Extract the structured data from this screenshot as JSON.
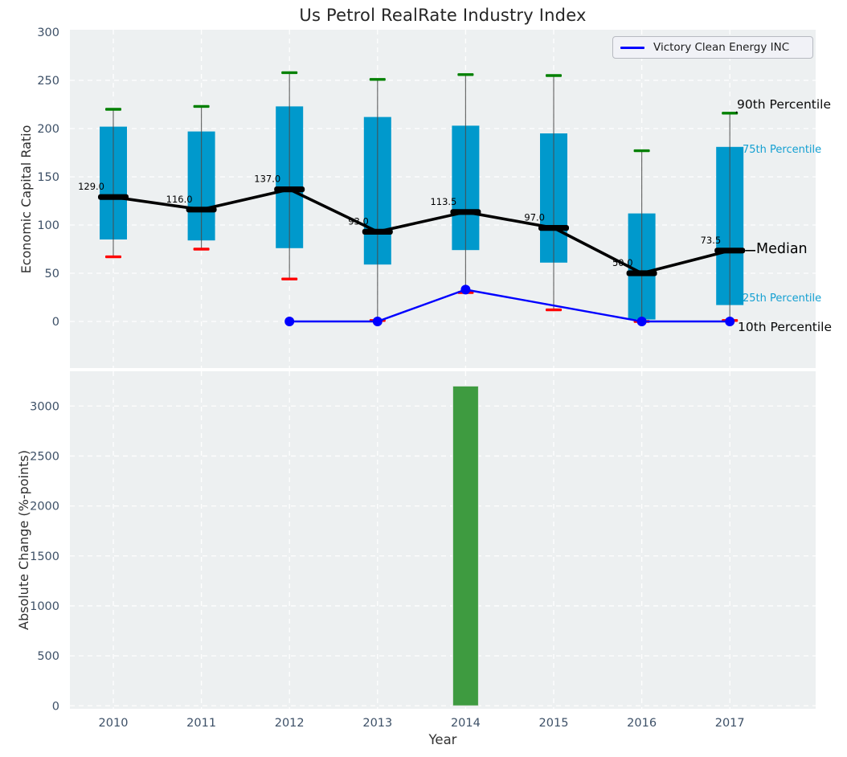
{
  "figure": {
    "title": "Us Petrol RealRate Industry Index"
  },
  "legend": {
    "label": "Victory Clean Energy INC"
  },
  "annotations": {
    "p90": "90th Percentile",
    "p75": "75th Percentile",
    "median": "Median",
    "p25": "25th Percentile",
    "p10": "10th Percentile"
  },
  "colors": {
    "box": "#0099cc",
    "cap_high": "#008000",
    "cap_low": "#ff0000",
    "median": "#000000",
    "company_line": "#0000ff",
    "bar": "#3e9b40",
    "axes_bg": "#edf0f1",
    "grid": "#ffffff",
    "tick_label": "#3d5067",
    "annotation_cyan": "#14a0d2",
    "whisker": "#4a4a4a"
  },
  "chart_data": [
    {
      "type": "box",
      "title": "Us Petrol RealRate Industry Index",
      "ylabel": "Economic Capital Ratio",
      "categories": [
        "2010",
        "2011",
        "2012",
        "2013",
        "2014",
        "2015",
        "2016",
        "2017"
      ],
      "yticks": [
        0,
        50,
        100,
        150,
        200,
        250,
        300
      ],
      "ylim": [
        -48,
        300
      ],
      "grid": true,
      "legend_position": "upper right",
      "series": [
        {
          "name": "90th Percentile",
          "values": [
            220,
            223,
            258,
            251,
            256,
            255,
            177,
            216
          ]
        },
        {
          "name": "75th Percentile",
          "values": [
            202,
            197,
            223,
            212,
            203,
            195,
            112,
            181
          ]
        },
        {
          "name": "Median",
          "values": [
            129.0,
            116.0,
            137.0,
            93.0,
            113.5,
            97.0,
            50.0,
            73.5
          ]
        },
        {
          "name": "25th Percentile",
          "values": [
            85,
            84,
            76,
            59,
            74,
            61,
            2,
            17
          ]
        },
        {
          "name": "10th Percentile",
          "values": [
            67,
            75,
            44,
            1,
            30,
            12,
            0,
            1
          ]
        },
        {
          "name": "Victory Clean Energy INC",
          "x": [
            "2012",
            "2013",
            "2014",
            "2016",
            "2017"
          ],
          "values": [
            0,
            0,
            33,
            0,
            0
          ]
        }
      ],
      "median_labels": [
        "129.0",
        "116.0",
        "137.0",
        "93.0",
        "113.5",
        "97.0",
        "50.0",
        "73.5"
      ]
    },
    {
      "type": "bar",
      "categories": [
        "2010",
        "2011",
        "2012",
        "2013",
        "2014",
        "2015",
        "2016",
        "2017"
      ],
      "values": [
        0,
        0,
        0,
        0,
        3200,
        0,
        0,
        0
      ],
      "xlabel": "Year",
      "ylabel": "Absolute Change (%-points)",
      "yticks": [
        0,
        500,
        1000,
        1500,
        2000,
        2500,
        3000
      ],
      "ylim": [
        -30,
        3348
      ],
      "grid": true
    }
  ]
}
